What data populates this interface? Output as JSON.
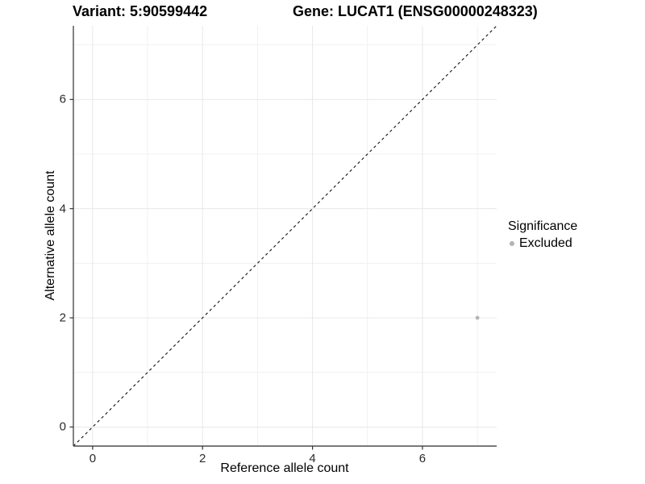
{
  "header": {
    "title_left": "Variant: 5:90599442",
    "title_right": "Gene: LUCAT1 (ENSG00000248323)"
  },
  "legend": {
    "title": "Significance",
    "items": [
      {
        "label": "Excluded",
        "color": "#b3b3b3"
      }
    ]
  },
  "chart_data": {
    "type": "scatter",
    "title": "Variant: 5:90599442   Gene: LUCAT1 (ENSG00000248323)",
    "xlabel": "Reference allele count",
    "ylabel": "Alternative allele count",
    "xlim": [
      -0.35,
      7.35
    ],
    "ylim": [
      -0.35,
      7.35
    ],
    "xticks": [
      0,
      2,
      4,
      6
    ],
    "yticks": [
      0,
      2,
      4,
      6
    ],
    "minor_xticks": [
      1,
      3,
      5,
      7
    ],
    "minor_yticks": [
      1,
      3,
      5,
      7
    ],
    "grid": "major+minor",
    "legend_position": "right",
    "series": [
      {
        "name": "Excluded",
        "color": "#b3b3b3",
        "points": [
          {
            "x": 7,
            "y": 2
          }
        ]
      }
    ],
    "reference_line": {
      "type": "identity",
      "style": "dashed",
      "color": "#111111"
    },
    "colors": {
      "background": "#ffffff",
      "grid_major": "#e8e8e8",
      "grid_minor": "#f1f1f1",
      "axis_line": "#4d4d4d",
      "tick_mark": "#333333",
      "tick_text": "#2b2b2b"
    }
  }
}
